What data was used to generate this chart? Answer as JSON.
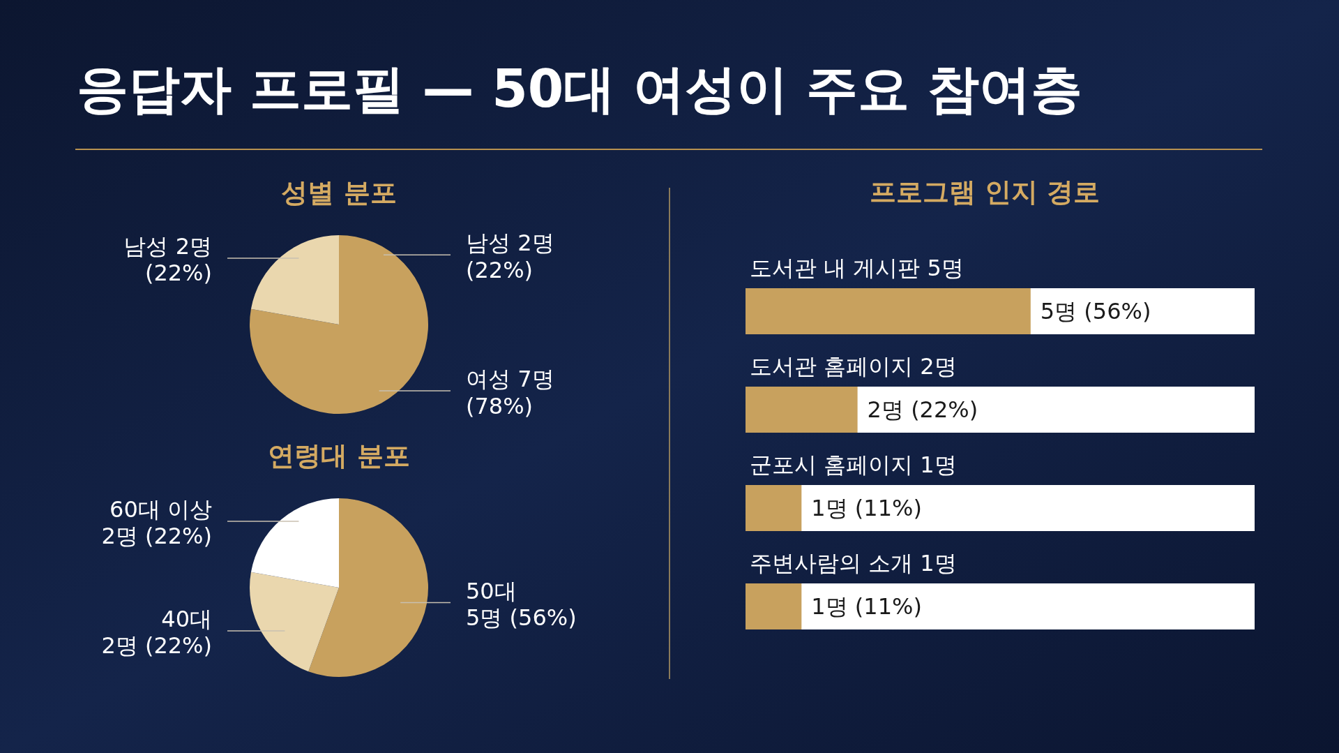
{
  "chart_data": [
    {
      "type": "pie",
      "title": "응답자 프로필 — 50대 여성이 주요 참여층",
      "subtitle": "성별 분포",
      "categories": [
        "여성 7명\n(78%)",
        "남성 2명\n(22%)"
      ],
      "values": [
        7,
        2
      ],
      "colors": [
        "#c8a15e",
        "#ead7ae"
      ],
      "annotations": [
        "남성 2명\n(22%)"
      ]
    },
    {
      "type": "pie",
      "title": "연령대 분포",
      "categories": [
        "50대\n5명 (56%)",
        "40대\n2명 (22%)",
        "60대 이상\n2명 (22%)"
      ],
      "values": [
        5,
        2,
        2
      ],
      "colors": [
        "#c8a15e",
        "#ead7ae",
        "#ffffff"
      ]
    },
    {
      "type": "bar",
      "orientation": "horizontal",
      "title": "프로그램 인지 경로",
      "categories": [
        "도서관 내 게시판 5명",
        "도서관 홈페이지 2명",
        "군포시 홈페이지 1명",
        "주변사람의 소개 1명"
      ],
      "values": [
        56,
        22,
        11,
        11
      ],
      "value_labels": [
        "5명 (56%)",
        "2명 (22%)",
        "1명 (11%)",
        "1명 (11%)"
      ],
      "xlim": [
        0,
        100
      ],
      "color": "#c8a15e"
    }
  ]
}
